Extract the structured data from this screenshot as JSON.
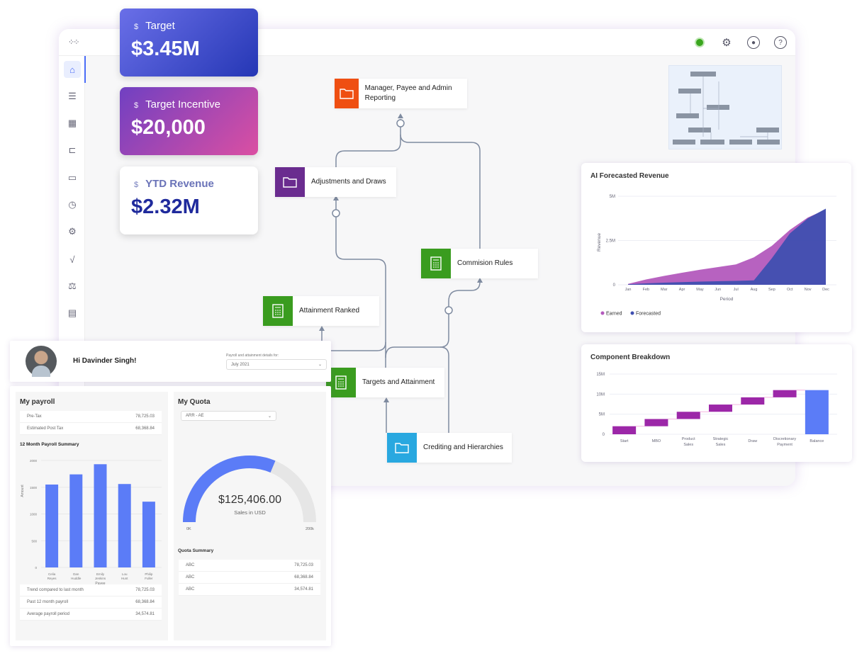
{
  "colors": {
    "accent": "#5b7cf7",
    "earned": "#b35abd",
    "forecasted": "#3f4fb0",
    "waterfall": "#9c27a8",
    "balance": "#5b7cf7",
    "status": "#3aa61e"
  },
  "topbar": {
    "icons": [
      "status-dot",
      "gear-icon",
      "user-icon",
      "help-icon"
    ]
  },
  "sidebar": {
    "items": [
      {
        "icon": "home-icon",
        "active": true
      },
      {
        "icon": "checklist-icon"
      },
      {
        "icon": "dashboard-icon"
      },
      {
        "icon": "workflow-icon"
      },
      {
        "icon": "monitor-icon"
      },
      {
        "icon": "calendar-clock-icon"
      },
      {
        "icon": "gear-list-icon"
      },
      {
        "icon": "pulse-icon"
      },
      {
        "icon": "scale-icon"
      },
      {
        "icon": "clipboard-icon"
      }
    ]
  },
  "kpis": [
    {
      "label": "Target",
      "value": "$3.45M",
      "icon": "$"
    },
    {
      "label": "Target Incentive",
      "value": "$20,000",
      "icon": "$"
    },
    {
      "label": "YTD Revenue",
      "value": "$2.32M",
      "icon": "$"
    }
  ],
  "flow": {
    "nodes": [
      {
        "label": "Manager, Payee and Admin Reporting",
        "icon": "folder-icon"
      },
      {
        "label": "Adjustments and Draws",
        "icon": "folder-icon"
      },
      {
        "label": "Commision Rules",
        "icon": "calculator-icon"
      },
      {
        "label": "Attainment Ranked",
        "icon": "calculator-icon"
      },
      {
        "label": "Targets and Attainment",
        "icon": "calculator-icon"
      },
      {
        "label": "Crediting and Hierarchies",
        "icon": "folder-icon"
      }
    ]
  },
  "welcome": {
    "greeting": "Hi Davinder Singh!",
    "period_label": "Payroll and attainment details for:",
    "period_value": "July 2021"
  },
  "payroll": {
    "title": "My payroll",
    "top_rows": [
      {
        "label": "Pre-Tax",
        "value": "78,725.03"
      },
      {
        "label": "Estimated Post Tax",
        "value": "68,368.84"
      }
    ],
    "summary_title": "12 Month Payroll Summary",
    "bottom_rows": [
      {
        "label": "Trend compared to last month",
        "value": "78,725.03"
      },
      {
        "label": "Past 12 month payroll",
        "value": "68,368.84"
      },
      {
        "label": "Average payroll period",
        "value": "34,574.81"
      }
    ]
  },
  "quota": {
    "title": "My Quota",
    "select": "ARR - AE",
    "gauge_value": "$125,406.00",
    "gauge_label": "Sales in USD",
    "gauge_min": "0K",
    "gauge_max": "200k",
    "gauge_fraction": 0.627,
    "summary_title": "Quota Summary",
    "rows": [
      {
        "label": "ABC",
        "value": "78,725.03"
      },
      {
        "label": "ABC",
        "value": "68,368.84"
      },
      {
        "label": "ABC",
        "value": "34,574.81"
      }
    ]
  },
  "chart_data": [
    {
      "type": "area",
      "title": "AI Forecasted Revenue",
      "xlabel": "Period",
      "ylabel": "Revenue",
      "categories": [
        "Jan",
        "Feb",
        "Mar",
        "Apr",
        "May",
        "Jun",
        "Jul",
        "Aug",
        "Sep",
        "Oct",
        "Nov",
        "Dec"
      ],
      "yticks": [
        "0",
        "2.5M",
        "5M"
      ],
      "ylim": [
        0,
        5000000
      ],
      "legend": "bottom-left",
      "series": [
        {
          "name": "Earned",
          "values": [
            0.05,
            0.3,
            0.5,
            0.68,
            0.85,
            1.0,
            1.15,
            1.55,
            2.2,
            3.1,
            3.8,
            4.25
          ]
        },
        {
          "name": "Forecasted",
          "values": [
            0.03,
            0.08,
            0.12,
            0.15,
            0.18,
            0.2,
            0.22,
            0.25,
            1.5,
            2.9,
            3.75,
            4.3
          ]
        }
      ],
      "units": "M"
    },
    {
      "type": "bar",
      "subtype": "waterfall",
      "title": "Component Breakdown",
      "categories": [
        "Start",
        "MBO",
        "Product Sales",
        "Strategic Sales",
        "Draw",
        "Discretionary Payment",
        "Balance"
      ],
      "values": [
        2,
        1.8,
        1.8,
        1.8,
        1.8,
        1.8,
        11
      ],
      "units": "M",
      "yticks": [
        "0",
        "5M",
        "10M",
        "15M"
      ],
      "ylim": [
        0,
        15
      ]
    },
    {
      "type": "bar",
      "title": "12 Month Payroll Summary",
      "xlabel": "Payee",
      "ylabel": "Amount",
      "categories": [
        "Celia Reyes",
        "Dan Huddle",
        "Emily Jenkins",
        "Lou Hunt",
        "Philip Fuller"
      ],
      "values": [
        1550,
        1740,
        1930,
        1560,
        1230
      ],
      "yticks": [
        "0",
        "500",
        "1000",
        "1500",
        "2000"
      ],
      "ylim": [
        0,
        2000
      ]
    }
  ]
}
